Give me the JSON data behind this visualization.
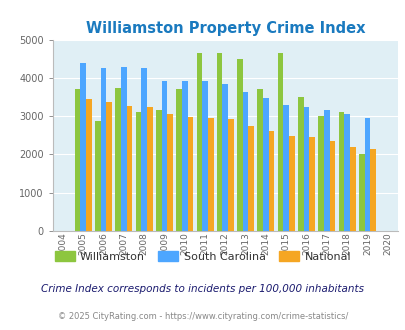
{
  "title": "Williamston Property Crime Index",
  "years": [
    2004,
    2005,
    2006,
    2007,
    2008,
    2009,
    2010,
    2011,
    2012,
    2013,
    2014,
    2015,
    2016,
    2017,
    2018,
    2019,
    2020
  ],
  "williamston": [
    null,
    3700,
    2880,
    3730,
    3100,
    3150,
    3700,
    4650,
    4650,
    4500,
    3700,
    4650,
    3500,
    3000,
    3100,
    2000,
    null
  ],
  "south_carolina": [
    null,
    4380,
    4250,
    4280,
    4250,
    3920,
    3920,
    3920,
    3840,
    3620,
    3480,
    3280,
    3250,
    3170,
    3050,
    2940,
    null
  ],
  "national": [
    null,
    3450,
    3360,
    3260,
    3230,
    3050,
    2970,
    2960,
    2920,
    2730,
    2600,
    2490,
    2460,
    2360,
    2190,
    2130,
    null
  ],
  "bar_color_williamston": "#8dc63f",
  "bar_color_sc": "#4da6ff",
  "bar_color_national": "#f5a623",
  "bg_color": "#e0eff5",
  "title_color": "#1a7abf",
  "ylabel_max": 5000,
  "ylabel_step": 1000,
  "subtitle": "Crime Index corresponds to incidents per 100,000 inhabitants",
  "footer": "© 2025 CityRating.com - https://www.cityrating.com/crime-statistics/",
  "legend_labels": [
    "Williamston",
    "South Carolina",
    "National"
  ],
  "subtitle_color": "#1a1a6e",
  "footer_color": "#888888"
}
